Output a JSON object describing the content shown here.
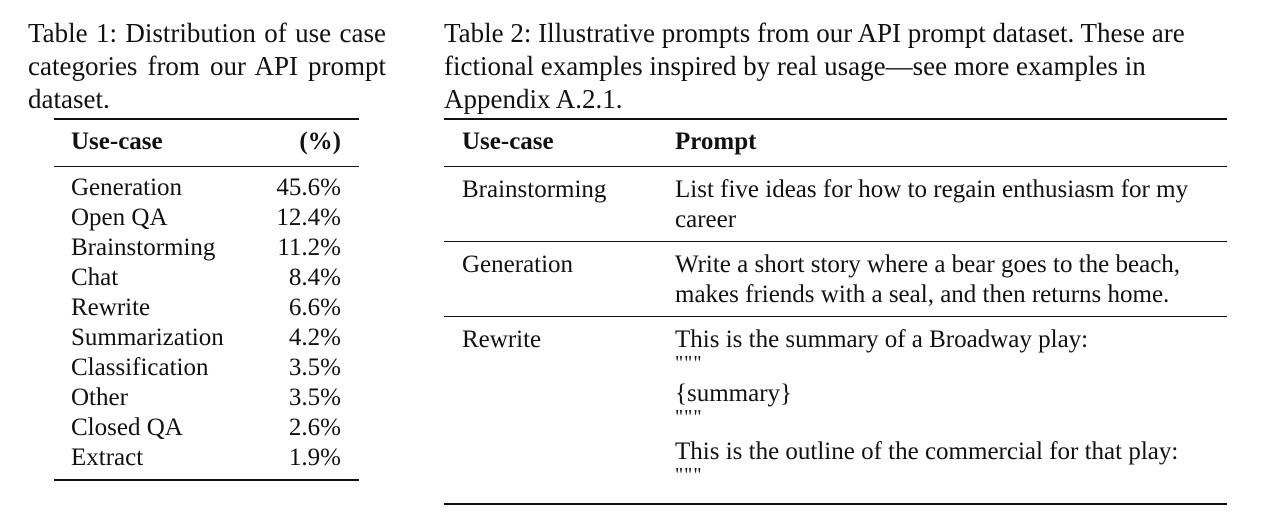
{
  "table1": {
    "caption": "Table 1: Distribution of use case categories from our API prompt dataset.",
    "headers": [
      "Use-case",
      "(%)"
    ],
    "rows": [
      [
        "Generation",
        "45.6%"
      ],
      [
        "Open QA",
        "12.4%"
      ],
      [
        "Brainstorming",
        "11.2%"
      ],
      [
        "Chat",
        "8.4%"
      ],
      [
        "Rewrite",
        "6.6%"
      ],
      [
        "Summarization",
        "4.2%"
      ],
      [
        "Classification",
        "3.5%"
      ],
      [
        "Other",
        "3.5%"
      ],
      [
        "Closed QA",
        "2.6%"
      ],
      [
        "Extract",
        "1.9%"
      ]
    ]
  },
  "table2": {
    "caption": "Table 2: Illustrative prompts from our API prompt dataset. These are fictional examples inspired by real usage—see more examples in Appendix A.2.1.",
    "headers": [
      "Use-case",
      "Prompt"
    ],
    "rows": [
      {
        "use_case": "Brainstorming",
        "prompt": [
          "List five ideas for how to regain enthusiasm for my",
          "career"
        ]
      },
      {
        "use_case": "Generation",
        "prompt": [
          "Write a short story where a bear goes to the beach,",
          "makes friends with a seal, and then returns home."
        ]
      },
      {
        "use_case": "Rewrite",
        "prompt": [
          "This is the summary of a Broadway play:",
          "\"\"\"",
          "{summary}",
          "\"\"\"",
          "This is the outline of the commercial for that play:",
          "\"\"\""
        ]
      }
    ]
  }
}
